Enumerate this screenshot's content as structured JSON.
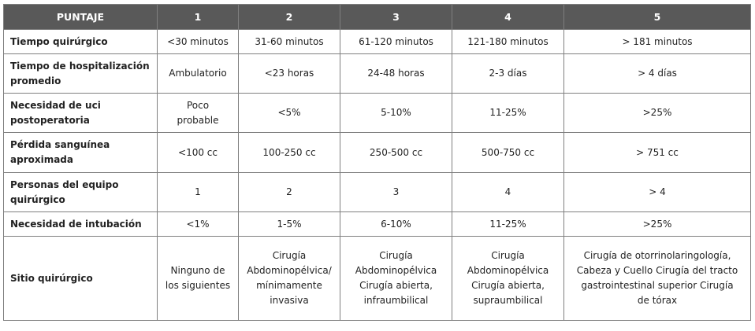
{
  "table": {
    "headers": [
      "PUNTAJE",
      "1",
      "2",
      "3",
      "4",
      "5"
    ],
    "rows": [
      {
        "label": "Tiempo quirúrgico",
        "cells": [
          "<30 minutos",
          "31-60 minutos",
          "61-120 minutos",
          "121-180 minutos",
          "> 181 minutos"
        ]
      },
      {
        "label": "Tiempo de hospitalización promedio",
        "cells": [
          "Ambulatorio",
          "<23 horas",
          "24-48 horas",
          "2-3 días",
          "> 4 días"
        ]
      },
      {
        "label": "Necesidad de uci postoperatoria",
        "cells": [
          "Poco probable",
          "<5%",
          "5-10%",
          "11-25%",
          ">25%"
        ]
      },
      {
        "label": "Pérdida sanguínea aproximada",
        "cells": [
          "<100 cc",
          "100-250 cc",
          "250-500 cc",
          "500-750 cc",
          "> 751 cc"
        ]
      },
      {
        "label": "Personas del equipo quirúrgico",
        "cells": [
          "1",
          "2",
          "3",
          "4",
          "> 4"
        ]
      },
      {
        "label": "Necesidad de intubación",
        "cells": [
          "<1%",
          "1-5%",
          "6-10%",
          "11-25%",
          ">25%"
        ]
      },
      {
        "label": "Sitio quirúrgico",
        "cells": [
          "Ninguno de los siguientes",
          "Cirugía Abdominopélvica/ mínimamente invasiva",
          "Cirugía Abdominopélvica Cirugía abierta, infraumbilical",
          "Cirugía Abdominopélvica Cirugía abierta, supraumbilical",
          "Cirugía de otorrinolaringología, Cabeza y Cuello Cirugía del tracto gastrointestinal superior Cirugía de tórax"
        ]
      }
    ]
  }
}
